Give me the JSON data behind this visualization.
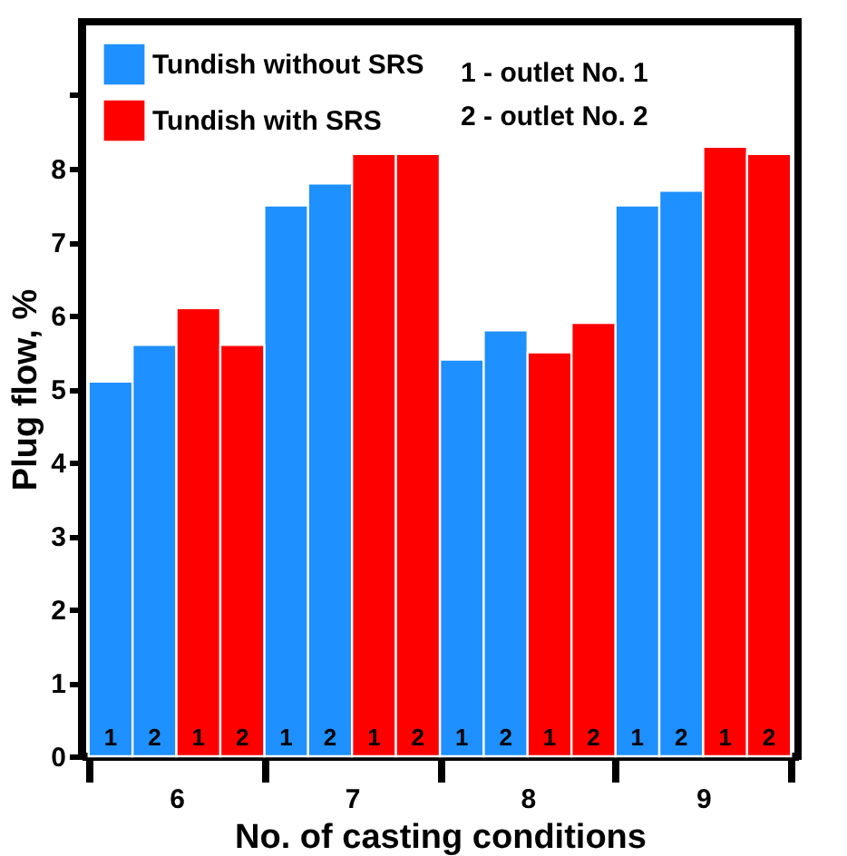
{
  "chart_data": {
    "type": "bar",
    "categories": [
      "6",
      "7",
      "8",
      "9"
    ],
    "xlabel": "No. of casting conditions",
    "ylabel": "Plug flow, %",
    "ylim": [
      0,
      10
    ],
    "yticks": [
      0,
      1,
      2,
      3,
      4,
      5,
      6,
      7,
      8,
      {
        "value": 9,
        "label": null
      }
    ],
    "series": [
      {
        "name": "Tundish without SRS",
        "color": "#1e90ff",
        "values": [
          5.1,
          7.5,
          5.4,
          7.5
        ]
      },
      {
        "color": "#1e90ff",
        "values": [
          5.6,
          7.8,
          5.8,
          7.7
        ]
      },
      {
        "name": "Tundish with SRS",
        "color": "#ff0000",
        "values": [
          6.1,
          8.2,
          5.5,
          8.3
        ]
      },
      {
        "color": "#ff0000",
        "values": [
          5.6,
          8.2,
          5.9,
          8.2
        ]
      }
    ],
    "annotations": [
      "1 - outlet No. 1",
      "2 - outlet No. 2",
      {
        "text": "1",
        "x": "6",
        "y": 0
      },
      {
        "text": "2",
        "x": "6",
        "y": 0
      },
      {
        "text": "1",
        "x": "6",
        "y": 0
      },
      {
        "text": "2",
        "x": "6",
        "y": 0
      },
      {
        "text": "1",
        "x": "7",
        "y": 0
      },
      {
        "text": "2",
        "x": "7",
        "y": 0
      },
      {
        "text": "1",
        "x": "7",
        "y": 0
      },
      {
        "text": "2",
        "x": "7",
        "y": 0
      },
      {
        "text": "1",
        "x": "8",
        "y": 0
      },
      {
        "text": "2",
        "x": "8",
        "y": 0
      },
      {
        "text": "1",
        "x": "8",
        "y": 0
      },
      {
        "text": "2",
        "x": "8",
        "y": 0
      },
      {
        "text": "1",
        "x": "9",
        "y": 0
      },
      {
        "text": "2",
        "x": "9",
        "y": 0
      },
      {
        "text": "1",
        "x": "9",
        "y": 0
      },
      {
        "text": "2",
        "x": "9",
        "y": 0
      }
    ],
    "legend": "top left",
    "grid": false
  }
}
